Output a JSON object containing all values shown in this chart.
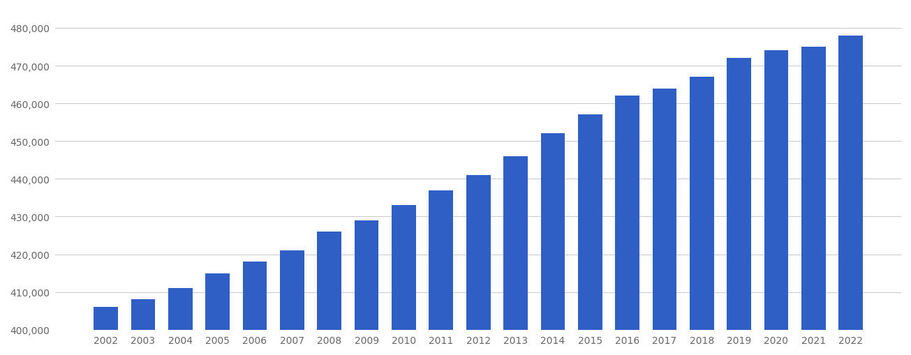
{
  "years": [
    "2002",
    "2003",
    "2004",
    "2005",
    "2006",
    "2007",
    "2008",
    "2009",
    "2010",
    "2011",
    "2012",
    "2013",
    "2014",
    "2015",
    "2016",
    "2017",
    "2018",
    "2019",
    "2020",
    "2021",
    "2022"
  ],
  "values": [
    406000,
    408000,
    411000,
    415000,
    418000,
    421000,
    426000,
    429000,
    433000,
    437000,
    441000,
    446000,
    452000,
    457000,
    462000,
    464000,
    467000,
    472000,
    474000,
    475000,
    478000
  ],
  "bar_color": "#2F5FC4",
  "background_color": "#ffffff",
  "grid_color": "#cccccc",
  "ylim_min": 400000,
  "ylim_max": 485000,
  "ytick_step": 10000,
  "tick_label_color": "#666666",
  "bar_width": 0.65
}
